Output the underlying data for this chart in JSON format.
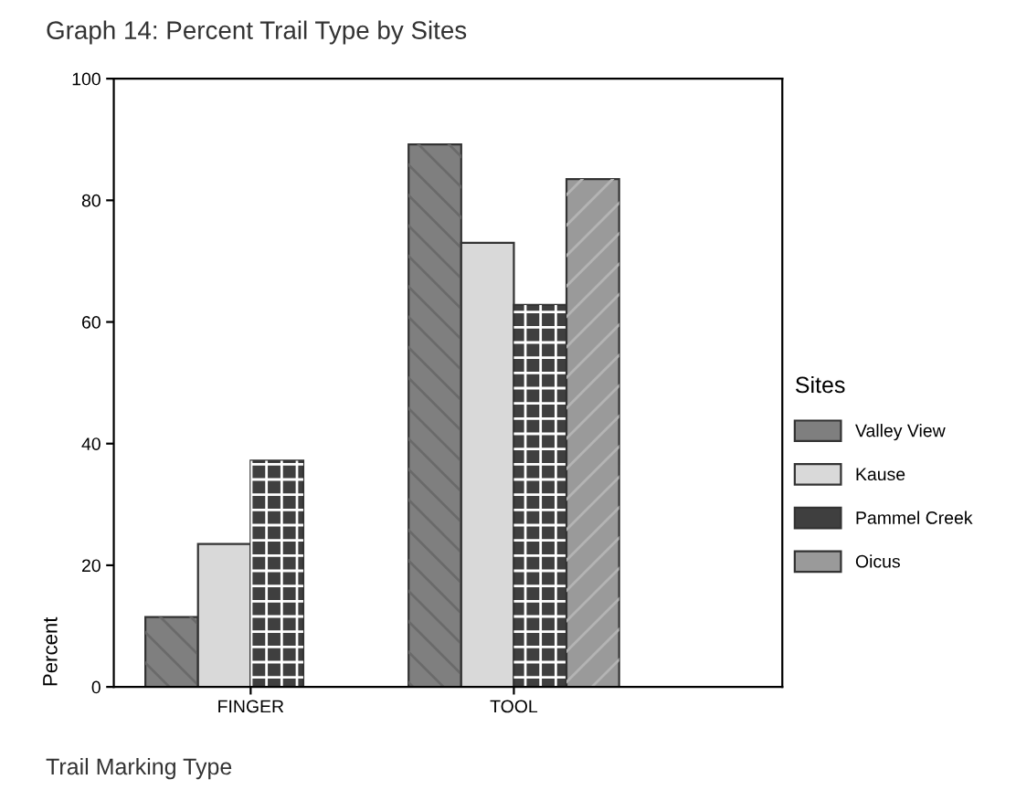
{
  "chart_data": {
    "type": "bar",
    "title": "Graph 14: Percent Trail Type by Sites",
    "xlabel": "Trail Marking Type",
    "ylabel": "Percent",
    "legend_title": "Sites",
    "legend": "right",
    "grid": false,
    "categories": [
      "FINGER",
      "TOOL"
    ],
    "series": [
      {
        "name": "Valley View",
        "color": "#7f7f7f",
        "values": [
          11.5,
          89.2
        ]
      },
      {
        "name": "Kause",
        "color": "#d9d9d9",
        "values": [
          23.5,
          73
        ]
      },
      {
        "name": "Pammel Creek",
        "color": "#3f3f3f",
        "values": [
          37.2,
          62.8
        ]
      },
      {
        "name": "Oicus",
        "color": "#9a9a9a",
        "values": [
          null,
          83.5
        ]
      }
    ],
    "ylim": [
      0,
      100
    ],
    "yticks": [
      0,
      20,
      40,
      60,
      80,
      100
    ]
  }
}
